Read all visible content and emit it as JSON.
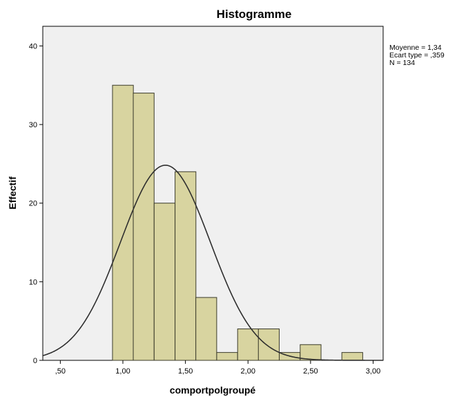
{
  "chart_data": {
    "type": "bar",
    "title": "Histogramme",
    "xlabel": "comportpolgroupé",
    "ylabel": "Effectif",
    "x_ticks": [
      {
        "value": 0.5,
        "label": ",50"
      },
      {
        "value": 1.0,
        "label": "1,00"
      },
      {
        "value": 1.5,
        "label": "1,50"
      },
      {
        "value": 2.0,
        "label": "2,00"
      },
      {
        "value": 2.5,
        "label": "2,50"
      },
      {
        "value": 3.0,
        "label": "3,00"
      }
    ],
    "y_ticks": [
      {
        "value": 0,
        "label": "0"
      },
      {
        "value": 10,
        "label": "10"
      },
      {
        "value": 20,
        "label": "20"
      },
      {
        "value": 30,
        "label": "30"
      },
      {
        "value": 40,
        "label": "40"
      }
    ],
    "xlim": [
      0.36,
      3.08
    ],
    "ylim": [
      0,
      42.5
    ],
    "bin_width": 0.1667,
    "bins": [
      {
        "start": 0.917,
        "value": 35
      },
      {
        "start": 1.083,
        "value": 34
      },
      {
        "start": 1.25,
        "value": 20
      },
      {
        "start": 1.417,
        "value": 24
      },
      {
        "start": 1.583,
        "value": 8
      },
      {
        "start": 1.75,
        "value": 1
      },
      {
        "start": 1.917,
        "value": 4
      },
      {
        "start": 2.083,
        "value": 4
      },
      {
        "start": 2.25,
        "value": 1
      },
      {
        "start": 2.417,
        "value": 2
      },
      {
        "start": 2.583,
        "value": 0
      },
      {
        "start": 2.75,
        "value": 1
      }
    ],
    "normal_curve": {
      "mean": 1.34,
      "sd": 0.359,
      "n": 134
    },
    "stats": [
      "Moyenne = 1,34",
      "Ecart type = ,359",
      "N = 134"
    ],
    "legend_position": "right",
    "grid": false,
    "colors": {
      "plot_background": "#f0f0f0",
      "bar_fill": "#d8d4a0",
      "bar_stroke": "#3a3a2a",
      "curve": "#2e2e2e"
    }
  }
}
